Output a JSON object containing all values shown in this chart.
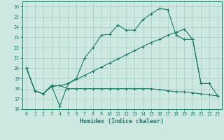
{
  "xlabel": "Humidex (Indice chaleur)",
  "bg_color": "#cce8e0",
  "grid_color": "#a8ccc4",
  "line_color": "#1a7a6a",
  "xlim": [
    -0.5,
    23.5
  ],
  "ylim": [
    16,
    26.5
  ],
  "xticks": [
    0,
    1,
    2,
    3,
    4,
    5,
    6,
    7,
    8,
    9,
    10,
    11,
    12,
    13,
    14,
    15,
    16,
    17,
    18,
    19,
    20,
    21,
    22,
    23
  ],
  "yticks": [
    16,
    17,
    18,
    19,
    20,
    21,
    22,
    23,
    24,
    25,
    26
  ],
  "line1_x": [
    0,
    1,
    2,
    3,
    4,
    5,
    6,
    7,
    8,
    9,
    10,
    11,
    12,
    13,
    14,
    15,
    16,
    17,
    18,
    19,
    20,
    21,
    22
  ],
  "line1_y": [
    20.0,
    17.8,
    17.5,
    18.3,
    16.3,
    18.5,
    19.0,
    21.0,
    22.0,
    23.2,
    23.3,
    24.2,
    23.7,
    23.7,
    24.7,
    25.3,
    25.8,
    25.7,
    23.2,
    22.8,
    22.8,
    18.5,
    18.5
  ],
  "line2_x": [
    0,
    1,
    2,
    3,
    4,
    5,
    6,
    7,
    8,
    9,
    10,
    11,
    12,
    13,
    14,
    15,
    16,
    17,
    18,
    19,
    20,
    21,
    22,
    23
  ],
  "line2_y": [
    20.0,
    17.8,
    17.5,
    18.3,
    18.3,
    18.5,
    18.9,
    19.3,
    19.7,
    20.1,
    20.5,
    20.9,
    21.3,
    21.7,
    22.1,
    22.5,
    22.8,
    23.2,
    23.5,
    23.8,
    22.8,
    18.5,
    18.5,
    17.3
  ],
  "line3_x": [
    0,
    1,
    2,
    3,
    4,
    5,
    6,
    7,
    8,
    9,
    10,
    11,
    12,
    13,
    14,
    15,
    16,
    17,
    18,
    19,
    20,
    21,
    22,
    23
  ],
  "line3_y": [
    20.0,
    17.8,
    17.5,
    18.2,
    18.3,
    18.0,
    18.0,
    18.0,
    18.0,
    18.0,
    18.0,
    18.0,
    18.0,
    18.0,
    18.0,
    18.0,
    17.9,
    17.8,
    17.7,
    17.7,
    17.6,
    17.5,
    17.4,
    17.3
  ]
}
